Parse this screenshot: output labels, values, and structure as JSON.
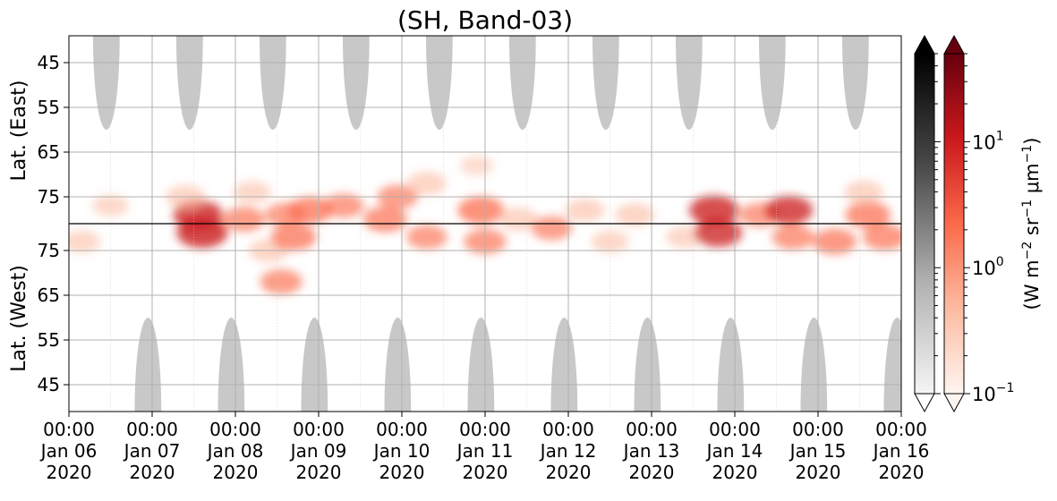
{
  "chart_data": {
    "type": "heatmap",
    "title": "(SH, Band-03)",
    "yaxis_top": {
      "label": "Lat. (East)",
      "ticks": [
        45,
        55,
        65,
        75
      ],
      "range": [
        39,
        81
      ]
    },
    "yaxis_bottom": {
      "label": "Lat. (West)",
      "ticks": [
        75,
        65,
        55,
        45
      ],
      "range": [
        81,
        39
      ]
    },
    "xaxis": {
      "range": [
        "2020-01-06 00:00",
        "2020-01-16 00:00"
      ],
      "ticks": [
        {
          "time": "00:00",
          "date": "Jan 06",
          "year": "2020"
        },
        {
          "time": "00:00",
          "date": "Jan 07",
          "year": "2020"
        },
        {
          "time": "00:00",
          "date": "Jan 08",
          "year": "2020"
        },
        {
          "time": "00:00",
          "date": "Jan 09",
          "year": "2020"
        },
        {
          "time": "00:00",
          "date": "Jan 10",
          "year": "2020"
        },
        {
          "time": "00:00",
          "date": "Jan 11",
          "year": "2020"
        },
        {
          "time": "00:00",
          "date": "Jan 12",
          "year": "2020"
        },
        {
          "time": "00:00",
          "date": "Jan 13",
          "year": "2020"
        },
        {
          "time": "00:00",
          "date": "Jan 14",
          "year": "2020"
        },
        {
          "time": "00:00",
          "date": "Jan 15",
          "year": "2020"
        },
        {
          "time": "00:00",
          "date": "Jan 16",
          "year": "2020"
        }
      ]
    },
    "grid": true,
    "colorbars": [
      {
        "cmap": "Greys",
        "scale": "log",
        "extend": "both",
        "colors": [
          "#f5f5f5",
          "#b0b0b0",
          "#4a4a4a",
          "#000000"
        ]
      },
      {
        "cmap": "Reds",
        "scale": "log",
        "extend": "both",
        "range": [
          0.1,
          50
        ],
        "colors": [
          "#fff5f0",
          "#fcbba1",
          "#fb6a4a",
          "#cb181d",
          "#67000d"
        ],
        "label_main": "(W m",
        "label_sup1": "−2",
        "label_mid1": " sr",
        "label_sup2": "−1",
        "label_mid2": " μm",
        "label_sup3": "−1",
        "label_end": ")",
        "ticks": [
          {
            "value": 10,
            "base": "10",
            "exp": "1"
          },
          {
            "value": 1,
            "base": "10",
            "exp": "0"
          },
          {
            "value": 0.1,
            "base": "10",
            "exp": "−1"
          }
        ]
      }
    ],
    "night_regions": {
      "top_day_centers": [
        0.45,
        1.45,
        2.45,
        3.45,
        4.45,
        5.45,
        6.45,
        7.45,
        8.45,
        9.45
      ],
      "bottom_day_centers": [
        0.95,
        1.95,
        2.95,
        3.95,
        4.95,
        5.95,
        6.95,
        7.95,
        8.95,
        9.95
      ],
      "edge_lat": 60,
      "color": "#c8c8c8"
    },
    "emission_blobs": [
      {
        "day": 0.5,
        "lat": 77,
        "intensity": 0.4
      },
      {
        "day": 0.15,
        "lat": -77,
        "intensity": 0.45
      },
      {
        "day": 1.55,
        "lat": 79,
        "intensity": 0.85
      },
      {
        "day": 1.6,
        "lat": -79,
        "intensity": 0.9
      },
      {
        "day": 1.4,
        "lat": 75,
        "intensity": 0.5
      },
      {
        "day": 2.1,
        "lat": 80,
        "intensity": 0.6
      },
      {
        "day": 2.2,
        "lat": 74,
        "intensity": 0.45
      },
      {
        "day": 2.6,
        "lat": 79,
        "intensity": 0.55
      },
      {
        "day": 2.4,
        "lat": -75,
        "intensity": 0.5
      },
      {
        "day": 2.7,
        "lat": -78,
        "intensity": 0.7
      },
      {
        "day": 2.55,
        "lat": -68,
        "intensity": 0.6
      },
      {
        "day": 2.9,
        "lat": 78,
        "intensity": 0.7
      },
      {
        "day": 3.3,
        "lat": 77,
        "intensity": 0.55
      },
      {
        "day": 3.8,
        "lat": 80,
        "intensity": 0.65
      },
      {
        "day": 3.95,
        "lat": 75,
        "intensity": 0.55
      },
      {
        "day": 4.3,
        "lat": 72,
        "intensity": 0.5
      },
      {
        "day": 4.3,
        "lat": -78,
        "intensity": 0.55
      },
      {
        "day": 4.95,
        "lat": 78,
        "intensity": 0.75
      },
      {
        "day": 4.9,
        "lat": 68,
        "intensity": 0.3
      },
      {
        "day": 5.0,
        "lat": -77,
        "intensity": 0.6
      },
      {
        "day": 5.4,
        "lat": 80,
        "intensity": 0.5
      },
      {
        "day": 5.8,
        "lat": -80,
        "intensity": 0.55
      },
      {
        "day": 6.2,
        "lat": 78,
        "intensity": 0.5
      },
      {
        "day": 6.5,
        "lat": -77,
        "intensity": 0.45
      },
      {
        "day": 6.8,
        "lat": 79,
        "intensity": 0.5
      },
      {
        "day": 7.4,
        "lat": -78,
        "intensity": 0.45
      },
      {
        "day": 7.75,
        "lat": 78,
        "intensity": 0.85
      },
      {
        "day": 7.8,
        "lat": -79,
        "intensity": 0.8
      },
      {
        "day": 8.3,
        "lat": 79,
        "intensity": 0.55
      },
      {
        "day": 8.65,
        "lat": 78,
        "intensity": 0.8
      },
      {
        "day": 8.7,
        "lat": -78,
        "intensity": 0.6
      },
      {
        "day": 9.2,
        "lat": -77,
        "intensity": 0.65
      },
      {
        "day": 9.6,
        "lat": 79,
        "intensity": 0.7
      },
      {
        "day": 9.8,
        "lat": -78,
        "intensity": 0.65
      },
      {
        "day": 9.55,
        "lat": 74,
        "intensity": 0.5
      }
    ]
  }
}
